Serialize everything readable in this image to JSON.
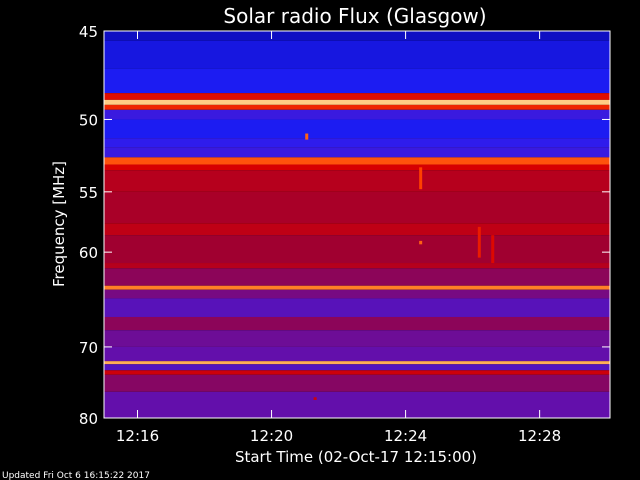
{
  "chart_data": {
    "type": "heatmap",
    "title": "Solar radio Flux (Glasgow)",
    "xlabel": "Start Time (02-Oct-17 12:15:00)",
    "ylabel": "Frequency [MHz]",
    "x_range_minutes": [
      0,
      15.1
    ],
    "x_ticks": [
      {
        "label": "12:16",
        "value": 1
      },
      {
        "label": "12:20",
        "value": 5
      },
      {
        "label": "12:24",
        "value": 9
      },
      {
        "label": "12:28",
        "value": 13
      }
    ],
    "ylim": [
      45,
      80
    ],
    "y_reversed": true,
    "y_ticks": [
      45,
      50,
      55,
      60,
      70,
      80
    ],
    "colormap": [
      "#000050",
      "#1010c8",
      "#2020ff",
      "#6010b0",
      "#a00030",
      "#d80000",
      "#ff4000",
      "#ff9030",
      "#ffe0a0"
    ],
    "bands": [
      {
        "from": 45.0,
        "to": 45.5,
        "level": 0.12
      },
      {
        "from": 45.5,
        "to": 47.0,
        "level": 0.18
      },
      {
        "from": 47.0,
        "to": 48.4,
        "level": 0.22
      },
      {
        "from": 48.4,
        "to": 48.8,
        "level": 0.65
      },
      {
        "from": 48.8,
        "to": 49.1,
        "level": 0.97
      },
      {
        "from": 49.1,
        "to": 49.4,
        "level": 0.7
      },
      {
        "from": 49.4,
        "to": 50.0,
        "level": 0.3
      },
      {
        "from": 50.0,
        "to": 51.2,
        "level": 0.22
      },
      {
        "from": 51.2,
        "to": 51.8,
        "level": 0.28
      },
      {
        "from": 51.8,
        "to": 52.5,
        "level": 0.3
      },
      {
        "from": 52.5,
        "to": 53.0,
        "level": 0.78
      },
      {
        "from": 53.0,
        "to": 53.4,
        "level": 0.62
      },
      {
        "from": 53.4,
        "to": 55.0,
        "level": 0.55
      },
      {
        "from": 55.0,
        "to": 57.5,
        "level": 0.52
      },
      {
        "from": 57.5,
        "to": 58.5,
        "level": 0.57
      },
      {
        "from": 58.5,
        "to": 61.0,
        "level": 0.5
      },
      {
        "from": 61.0,
        "to": 61.5,
        "level": 0.55
      },
      {
        "from": 61.5,
        "to": 63.2,
        "level": 0.46
      },
      {
        "from": 63.2,
        "to": 63.6,
        "level": 0.85
      },
      {
        "from": 63.6,
        "to": 64.5,
        "level": 0.42
      },
      {
        "from": 64.5,
        "to": 66.5,
        "level": 0.36
      },
      {
        "from": 66.5,
        "to": 68.0,
        "level": 0.46
      },
      {
        "from": 68.0,
        "to": 70.0,
        "level": 0.4
      },
      {
        "from": 70.0,
        "to": 71.8,
        "level": 0.38
      },
      {
        "from": 71.8,
        "to": 72.2,
        "level": 0.92
      },
      {
        "from": 72.2,
        "to": 73.0,
        "level": 0.35
      },
      {
        "from": 73.0,
        "to": 73.6,
        "level": 0.6
      },
      {
        "from": 73.6,
        "to": 76.0,
        "level": 0.45
      },
      {
        "from": 76.0,
        "to": 80.0,
        "level": 0.38
      }
    ],
    "bursts": [
      {
        "t": 6.05,
        "f_from": 50.9,
        "f_to": 51.3,
        "level": 0.8
      },
      {
        "t": 9.45,
        "f_from": 53.2,
        "f_to": 54.8,
        "level": 0.75
      },
      {
        "t": 9.45,
        "f_from": 59.0,
        "f_to": 59.3,
        "level": 0.8
      },
      {
        "t": 11.2,
        "f_from": 57.8,
        "f_to": 60.5,
        "level": 0.68
      },
      {
        "t": 11.6,
        "f_from": 58.5,
        "f_to": 61.0,
        "level": 0.64
      },
      {
        "t": 6.3,
        "f_from": 76.8,
        "f_to": 77.2,
        "level": 0.6
      }
    ]
  },
  "footer": {
    "updated": "Updated Fri Oct  6 16:15:22 2017"
  }
}
